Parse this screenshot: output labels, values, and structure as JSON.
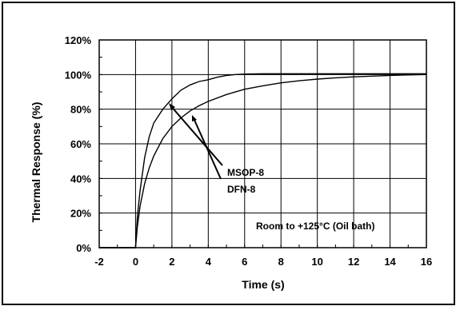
{
  "chart_data": {
    "type": "line",
    "xlabel": "Time (s)",
    "ylabel": "Thermal Response (%)",
    "xlim": [
      -2,
      16
    ],
    "ylim": [
      0,
      1.2
    ],
    "x_ticks": [
      "-2",
      "0",
      "2",
      "4",
      "6",
      "8",
      "10",
      "12",
      "14",
      "16"
    ],
    "y_ticks": [
      "0%",
      "20%",
      "40%",
      "60%",
      "80%",
      "100%",
      "120%"
    ],
    "grid": true,
    "series": [
      {
        "name": "MSOP-8",
        "x": [
          -2,
          0,
          0.1,
          0.25,
          0.5,
          0.75,
          1,
          1.5,
          2,
          2.5,
          3,
          3.5,
          4,
          4.5,
          5,
          5.5,
          6,
          7,
          8,
          10,
          12,
          14,
          16
        ],
        "y": [
          0,
          0,
          0.18,
          0.33,
          0.52,
          0.64,
          0.72,
          0.8,
          0.86,
          0.91,
          0.94,
          0.96,
          0.97,
          0.985,
          0.995,
          1.0,
          1.003,
          1.005,
          1.005,
          1.005,
          1.005,
          1.005,
          1.005
        ]
      },
      {
        "name": "DFN-8",
        "x": [
          -2,
          0,
          0.1,
          0.25,
          0.5,
          0.75,
          1,
          1.5,
          2,
          2.5,
          3,
          3.5,
          4,
          5,
          6,
          7,
          8,
          9,
          10,
          11,
          12,
          13,
          14,
          15,
          16
        ],
        "y": [
          0,
          0,
          0.12,
          0.24,
          0.37,
          0.46,
          0.53,
          0.63,
          0.7,
          0.75,
          0.79,
          0.82,
          0.845,
          0.885,
          0.915,
          0.935,
          0.952,
          0.964,
          0.974,
          0.981,
          0.987,
          0.991,
          0.995,
          0.998,
          1.0
        ]
      }
    ],
    "annotations": [
      "MSOP-8",
      "DFN-8",
      "Room to +125°C (Oil bath)"
    ],
    "legend": "none"
  }
}
